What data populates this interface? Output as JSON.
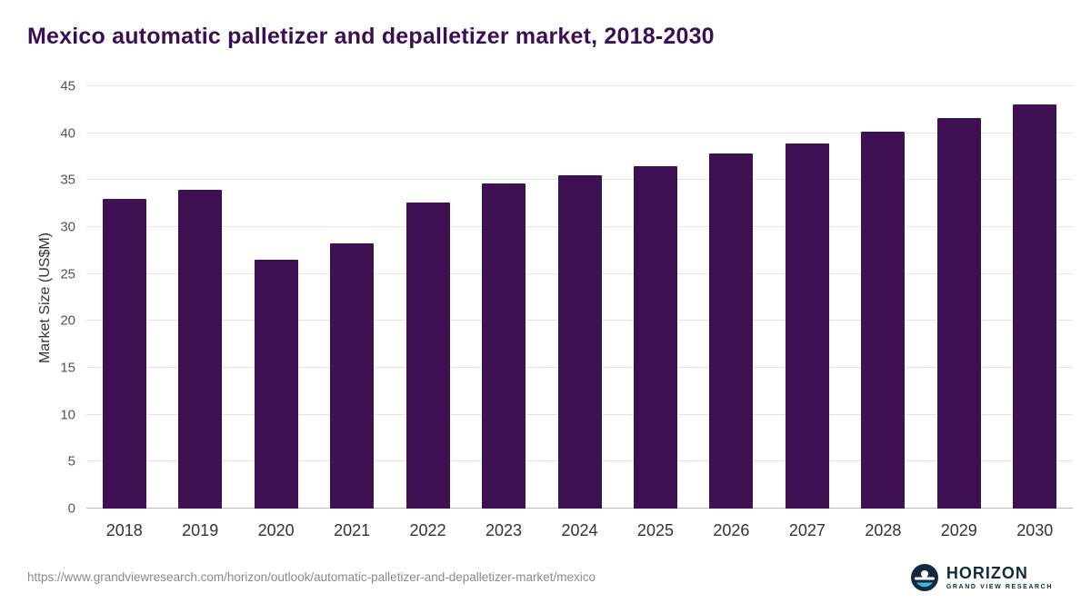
{
  "title": "Mexico automatic palletizer and depalletizer market, 2018-2030",
  "footer": {
    "source_url": "https://www.grandviewresearch.com/horizon/outlook/automatic-palletizer-and-depalletizer-market/mexico",
    "logo_title": "HORIZON",
    "logo_subtitle": "GRAND VIEW RESEARCH"
  },
  "chart_data": {
    "type": "bar",
    "title": "Mexico automatic palletizer and depalletizer market, 2018-2030",
    "categories": [
      "2018",
      "2019",
      "2020",
      "2021",
      "2022",
      "2023",
      "2024",
      "2025",
      "2026",
      "2027",
      "2028",
      "2029",
      "2030"
    ],
    "values": [
      33.0,
      34.0,
      26.5,
      28.3,
      32.6,
      34.6,
      35.5,
      36.5,
      37.8,
      38.9,
      40.2,
      41.6,
      43.1
    ],
    "xlabel": "",
    "ylabel": "Market Size (US$M)",
    "ylim": [
      0,
      45
    ],
    "ytick_step": 5,
    "grid": true,
    "legend": "none",
    "bar_color": "#3d1152",
    "gridline_color": "#e4e4e4",
    "title_color": "#3b1053"
  }
}
